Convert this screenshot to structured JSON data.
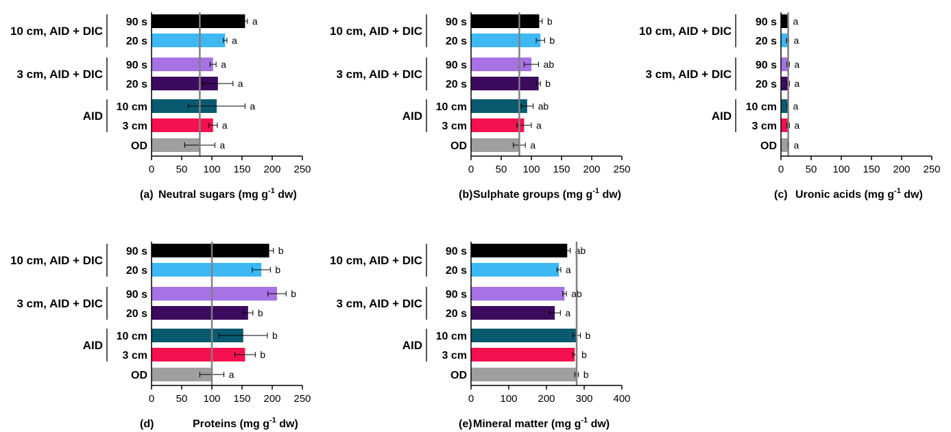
{
  "bar_colors": [
    "#000000",
    "#3db8f5",
    "#a772e3",
    "#3d0b5e",
    "#095a6e",
    "#f5114f",
    "#a09ea0"
  ],
  "axis_color": "#000000",
  "ref_line_color": "#808080",
  "group_labels": [
    "10 cm, AID + DIC",
    "3 cm, AID + DIC",
    "AID"
  ],
  "chart_data": [
    {
      "type": "bar",
      "orientation": "horizontal",
      "panel": "(a)",
      "title": "Neutral sugars (mg g",
      "title_sup": "-1",
      "title_tail": " dw)",
      "categories": [
        "90 s",
        "20 s",
        "90 s",
        "20 s",
        "10 cm",
        "3 cm",
        "OD"
      ],
      "values": [
        155,
        122,
        102,
        110,
        108,
        102,
        80
      ],
      "errors": [
        4,
        3,
        5,
        25,
        47,
        7,
        25
      ],
      "letters": [
        "a",
        "a",
        "a",
        "a",
        "a",
        "a",
        "a"
      ],
      "xlim": [
        0,
        250
      ],
      "xticks": [
        "0",
        "50",
        "100",
        "150",
        "200",
        "250"
      ],
      "reference_value": 80
    },
    {
      "type": "bar",
      "orientation": "horizontal",
      "panel": "(b)",
      "title": "Sulphate groups (mg g",
      "title_sup": "-1",
      "title_tail": " dw)",
      "categories": [
        "90 s",
        "20 s",
        "90 s",
        "20 s",
        "10 cm",
        "3 cm",
        "OD"
      ],
      "values": [
        113,
        115,
        100,
        112,
        93,
        88,
        80
      ],
      "errors": [
        5,
        7,
        12,
        3,
        10,
        12,
        10
      ],
      "letters": [
        "b",
        "b",
        "ab",
        "b",
        "ab",
        "a",
        "a"
      ],
      "xlim": [
        0,
        250
      ],
      "xticks": [
        "0",
        "50",
        "100",
        "150",
        "200",
        "250"
      ],
      "reference_value": 80
    },
    {
      "type": "bar",
      "orientation": "horizontal",
      "panel": "(c)",
      "title": "Uronic acids (mg g",
      "title_sup": "-1",
      "title_tail": " dw)",
      "categories": [
        "90 s",
        "20 s",
        "90 s",
        "20 s",
        "10 cm",
        "3 cm",
        "OD"
      ],
      "values": [
        11,
        11,
        12,
        12,
        11,
        12,
        12
      ],
      "errors": [
        1,
        2,
        2,
        2,
        1,
        2,
        1
      ],
      "letters": [
        "a",
        "a",
        "a",
        "a",
        "a",
        "a",
        "a"
      ],
      "xlim": [
        0,
        250
      ],
      "xticks": [
        "0",
        "50",
        "100",
        "150",
        "200",
        "250"
      ],
      "reference_value": 12
    },
    {
      "type": "bar",
      "orientation": "horizontal",
      "panel": "(d)",
      "title": "Proteins (mg g",
      "title_sup": "-1",
      "title_tail": " dw)",
      "categories": [
        "90 s",
        "20 s",
        "90 s",
        "20 s",
        "10 cm",
        "3 cm",
        "OD"
      ],
      "values": [
        195,
        182,
        208,
        160,
        152,
        155,
        100
      ],
      "errors": [
        7,
        15,
        15,
        8,
        40,
        17,
        20
      ],
      "letters": [
        "b",
        "b",
        "b",
        "b",
        "b",
        "b",
        "a"
      ],
      "xlim": [
        0,
        250
      ],
      "xticks": [
        "0",
        "50",
        "100",
        "150",
        "200",
        "250"
      ],
      "reference_value": 100
    },
    {
      "type": "bar",
      "orientation": "horizontal",
      "panel": "(e)",
      "title": "Mineral matter (mg g",
      "title_sup": "-1",
      "title_tail": " dw)",
      "categories": [
        "90 s",
        "20 s",
        "90 s",
        "20 s",
        "10 cm",
        "3 cm",
        "OD"
      ],
      "values": [
        255,
        233,
        248,
        222,
        280,
        275,
        280
      ],
      "errors": [
        8,
        5,
        5,
        15,
        10,
        5,
        5
      ],
      "letters": [
        "ab",
        "a",
        "ab",
        "a",
        "b",
        "b",
        "b"
      ],
      "xlim": [
        0,
        400
      ],
      "xticks": [
        "0",
        "100",
        "200",
        "300",
        "400"
      ],
      "reference_value": 280
    }
  ]
}
